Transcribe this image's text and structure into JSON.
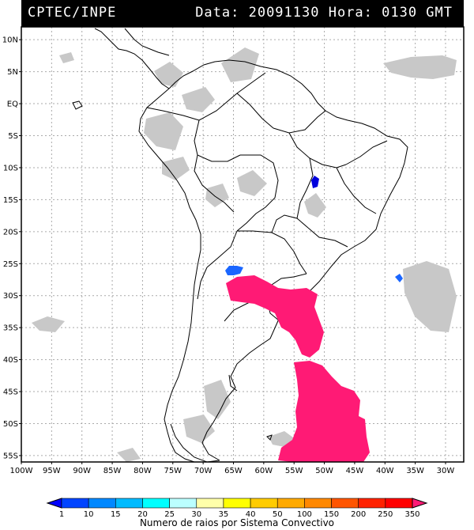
{
  "header": {
    "source": "CPTEC/INPE",
    "datetime": "Data: 20091130 Hora: 0130 GMT"
  },
  "map": {
    "lat_labels": [
      "10N",
      "5N",
      "EQ",
      "5S",
      "10S",
      "15S",
      "20S",
      "25S",
      "30S",
      "35S",
      "40S",
      "45S",
      "50S",
      "55S"
    ],
    "lon_labels": [
      "100W",
      "95W",
      "90W",
      "85W",
      "80W",
      "75W",
      "70W",
      "65W",
      "60W",
      "55W",
      "50W",
      "45W",
      "40W",
      "35W",
      "30W"
    ],
    "lat_range": [
      12,
      -56
    ],
    "lon_range": [
      -100,
      -27
    ],
    "grid": true
  },
  "colors": {
    "frame": "#000000",
    "grid": "#aaaaaa",
    "land_outline": "#000000",
    "cloud": "#c8c8c8",
    "highlight_magenta": "#ff1a75",
    "highlight_blue": "#1a66ff",
    "highlight_darkblue": "#0000dd"
  },
  "colorbar": {
    "labels": [
      "1",
      "10",
      "15",
      "20",
      "25",
      "30",
      "35",
      "40",
      "50",
      "100",
      "150",
      "200",
      "250",
      "350"
    ],
    "colors": [
      "#0000ff",
      "#0044ff",
      "#0088ff",
      "#00bbff",
      "#00ffff",
      "#bbffff",
      "#ffffaa",
      "#ffff00",
      "#ffcc00",
      "#ffaa00",
      "#ff8800",
      "#ff5500",
      "#ff2200",
      "#ff0000",
      "#ff1a75"
    ],
    "title": "Numero de raios por Sistema Convectivo"
  }
}
